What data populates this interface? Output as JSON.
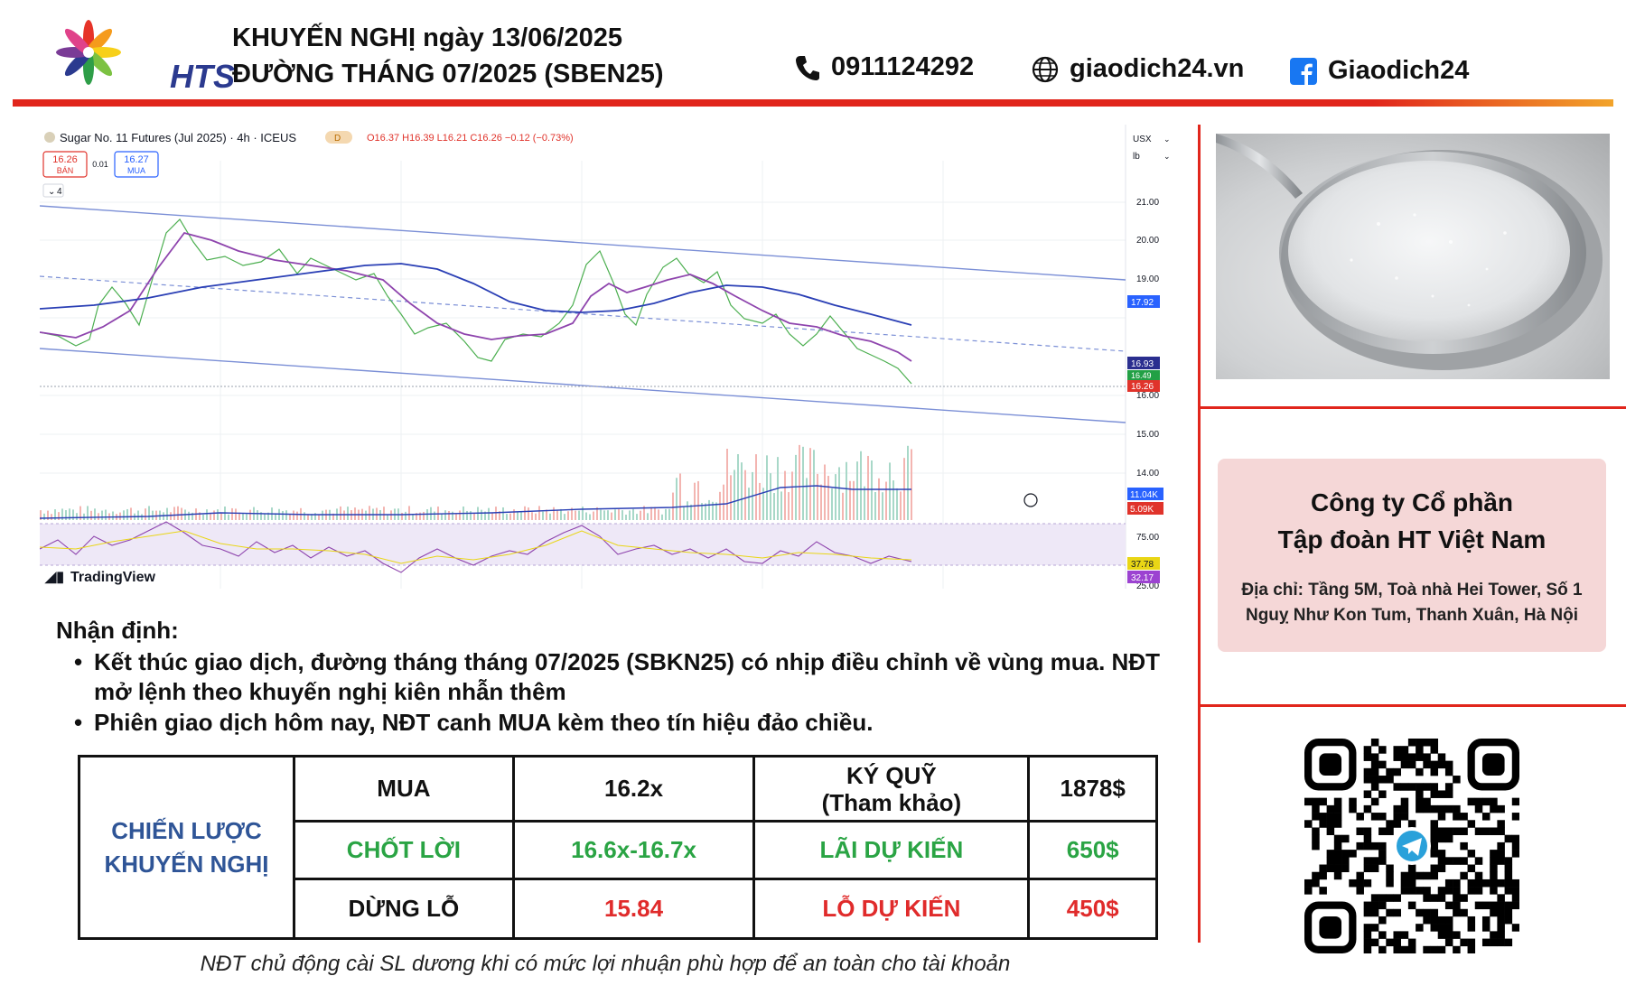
{
  "header": {
    "logo_text": "HTS",
    "title_line1": "KHUYẾN NGHỊ ngày 13/06/2025",
    "title_line2": "ĐƯỜNG THÁNG 07/2025 (SBEN25)",
    "phone": "0911124292",
    "website": "giaodich24.vn",
    "facebook": "Giaodich24",
    "icons": [
      "phone-icon",
      "globe-icon",
      "facebook-icon"
    ]
  },
  "chart": {
    "symbol_line": "Sugar No. 11 Futures (Jul 2025) · 4h · ICEUS",
    "ohlc": "O16.37 H16.39 L16.21 C16.26 −0.12 (−0.73%)",
    "sell_price": "16.26",
    "sell_label": "BÁN",
    "spread": "0.01",
    "buy_price": "16.27",
    "buy_label": "MUA",
    "indicator_count": "4",
    "currency": "USX",
    "unit": "lb",
    "watermark": "TradingView",
    "price_ticks": [
      "21.00",
      "20.00",
      "19.00",
      "16.00",
      "15.00",
      "14.00"
    ],
    "rsi_tick": "75.00",
    "rsi_bottom_tick": "25.00",
    "price_badges": [
      {
        "label": "17.92",
        "color": "#2962ff"
      },
      {
        "label": "16.93",
        "color": "#2a2e8f"
      },
      {
        "label": "16.49",
        "color": "#22a045"
      },
      {
        "label": "16.26",
        "color": "#e0332b"
      },
      {
        "label": "11.04K",
        "color": "#2962ff"
      },
      {
        "label": "5.09K",
        "color": "#e0332b"
      },
      {
        "label": "37.78",
        "color": "#e9d615"
      },
      {
        "label": "32.17",
        "color": "#9c43d1"
      }
    ]
  },
  "analysis": {
    "title": "Nhận định:",
    "bullets": [
      "Kết thúc giao dịch, đường tháng tháng 07/2025 (SBKN25) có nhịp điều chỉnh về vùng mua. NĐT mở lệnh theo khuyến nghị kiên nhẫn thêm",
      "Phiên giao dịch hôm nay, NĐT canh MUA kèm theo tín hiệu đảo chiều."
    ]
  },
  "strategy": {
    "label": "CHIẾN LƯỢC KHUYẾN NGHỊ",
    "label_line1": "CHIẾN LƯỢC",
    "label_line2": "KHUYẾN NGHỊ",
    "action": "MUA",
    "entry": "16.2x",
    "margin_label_line1": "KÝ QUỸ",
    "margin_label_line2": "(Tham khảo)",
    "margin_value": "1878$",
    "take_profit_label": "CHỐT LỜI",
    "take_profit_value": "16.6x-16.7x",
    "expected_profit_label": "LÃI DỰ KIẾN",
    "expected_profit_value": "650$",
    "stop_loss_label": "DỪNG LỖ",
    "stop_loss_value": "15.84",
    "expected_loss_label": "LỖ DỰ KIẾN",
    "expected_loss_value": "450$",
    "colors": {
      "label": "#2f5597",
      "profit": "#2aa444",
      "loss": "#e02b2b"
    }
  },
  "note": "NĐT chủ động cài SL dương khi có mức lợi nhuận phù hợp để an toàn cho tài khoản",
  "company": {
    "name_line1": "Công ty Cổ phần",
    "name_line2": "Tập đoàn HT Việt Nam",
    "address_line1": "Địa chỉ: Tầng 5M, Toà nhà Hei Tower, Số 1",
    "address_line2": "Nguỵ Như Kon Tum, Thanh Xuân, Hà Nội"
  },
  "images": [
    "sugar-photo",
    "telegram-qr-code"
  ]
}
